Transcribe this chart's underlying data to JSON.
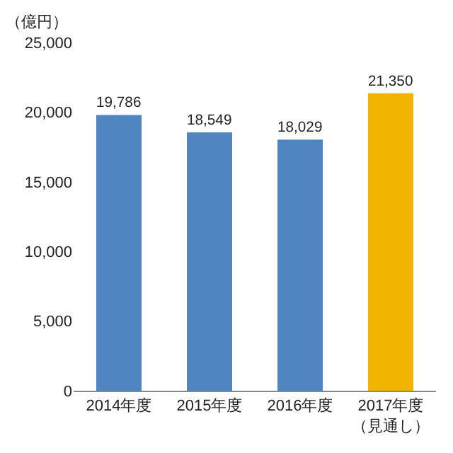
{
  "chart_data": {
    "type": "bar",
    "ylabel": "（億円）",
    "categories": [
      "2014年度",
      "2015年度",
      "2016年度",
      "2017年度（見通し）"
    ],
    "values": [
      19786,
      18549,
      18029,
      21350
    ],
    "colors": [
      "#4f86c2",
      "#4f86c2",
      "#4f86c2",
      "#f0b400"
    ],
    "value_labels": [
      "19,786",
      "18,549",
      "18,029",
      "21,350"
    ],
    "ylim": [
      0,
      25000
    ],
    "yticks": [
      0,
      {
        "value": 5000,
        "label": "5,000"
      },
      {
        "value": 10000,
        "label": "10,000"
      },
      {
        "value": 15000,
        "label": "15,000"
      },
      {
        "value": 20000,
        "label": "20,000"
      },
      {
        "value": 25000,
        "label": "25,000"
      }
    ],
    "grid": false
  }
}
